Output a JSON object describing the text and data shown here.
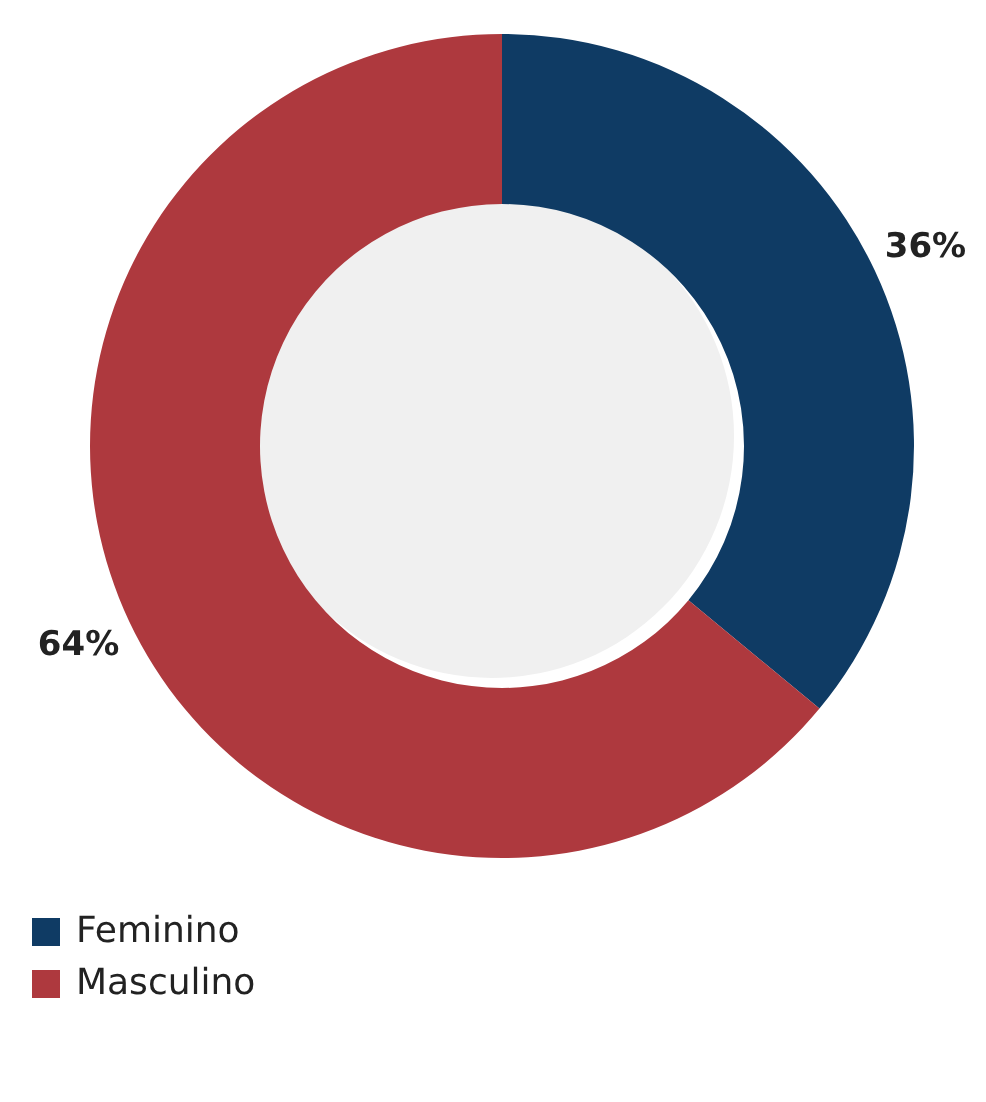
{
  "chart_data": {
    "type": "donut",
    "categories": [
      "Feminino",
      "Masculino"
    ],
    "values": [
      36,
      64
    ],
    "colors": [
      "#0f3b64",
      "#ae393e"
    ],
    "value_labels": [
      "36%",
      "64%"
    ],
    "legend": "bottom left"
  }
}
